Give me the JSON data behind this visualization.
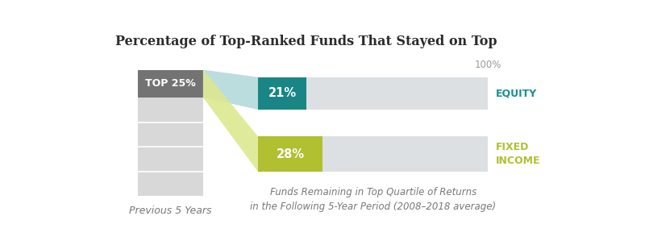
{
  "title": "Percentage of Top-Ranked Funds That Stayed on Top",
  "title_fontsize": 11.5,
  "bg_color": "#ffffff",
  "left_bar": {
    "label": "TOP 25%",
    "label_color": "#ffffff",
    "label_fontsize": 9,
    "top_color": "#737373",
    "bottom_color": "#d8d8d8",
    "divider_color": "#ffffff",
    "sublabel": "Previous 5 Years",
    "sublabel_color": "#777777",
    "sublabel_fontsize": 9
  },
  "equity_bar": {
    "value": 21,
    "pct_label": "21%",
    "color_filled": "#1a8585",
    "color_remaining": "#dde0e2",
    "label": "EQUITY",
    "label_color": "#1a9090",
    "label_fontsize": 9,
    "connector_color": "#b0d8d8"
  },
  "fixed_bar": {
    "value": 28,
    "pct_label": "28%",
    "color_filled": "#b0c030",
    "color_remaining": "#dde0e2",
    "label": "FIXED\nINCOME",
    "label_color": "#b0c030",
    "label_fontsize": 9,
    "connector_color": "#dde890"
  },
  "hundred_pct_label": "100%",
  "hundred_pct_color": "#999999",
  "hundred_pct_fontsize": 8.5,
  "xlabel_line1": "Funds Remaining in Top Quartile of Returns",
  "xlabel_line2": "in the Following 5-Year Period (2008–2018 average)",
  "xlabel_fontsize": 8.5,
  "xlabel_color": "#777777"
}
